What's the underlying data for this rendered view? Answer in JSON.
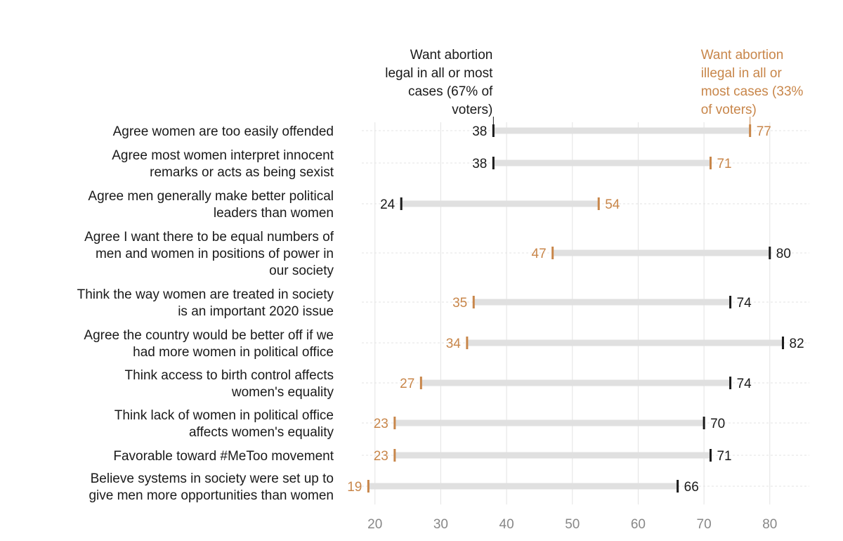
{
  "colors": {
    "legal": "#1a1a1a",
    "illegal": "#c8864a",
    "bar": "#e0e0e0",
    "grid": "#e3e3e3",
    "tick": "#888888"
  },
  "chart_data": {
    "type": "dumbbell",
    "xlim": [
      18,
      86
    ],
    "xticks": [
      20,
      30,
      40,
      50,
      60,
      70,
      80
    ],
    "series": [
      {
        "name": "legal",
        "label_lines": [
          "Want abortion",
          "legal in all or most",
          "cases (67% of",
          "voters)"
        ],
        "values": [
          38,
          38,
          24,
          80,
          74,
          82,
          74,
          70,
          71,
          66
        ]
      },
      {
        "name": "illegal",
        "label_lines": [
          "Want abortion",
          "illegal in all or",
          "most cases (33%",
          "of voters)"
        ],
        "values": [
          77,
          71,
          54,
          47,
          35,
          34,
          27,
          23,
          23,
          19
        ]
      }
    ],
    "categories": [
      [
        "Agree women are too easily offended"
      ],
      [
        "Agree most women interpret innocent",
        "remarks or acts as being sexist"
      ],
      [
        "Agree men generally make better political",
        "leaders than women"
      ],
      [
        "Agree I want there to be equal numbers of",
        "men and women in positions of power in",
        "our society"
      ],
      [
        "Think the way women are treated in society",
        "is an important 2020 issue"
      ],
      [
        "Agree the country would be better off if we",
        "had more women in political office"
      ],
      [
        "Think access to birth control affects",
        "women's equality"
      ],
      [
        "Think lack of women in political office",
        "affects women's equality"
      ],
      [
        "Favorable toward #MeToo movement"
      ],
      [
        "Believe systems in society were set up to",
        "give men more opportunities than women"
      ]
    ]
  }
}
